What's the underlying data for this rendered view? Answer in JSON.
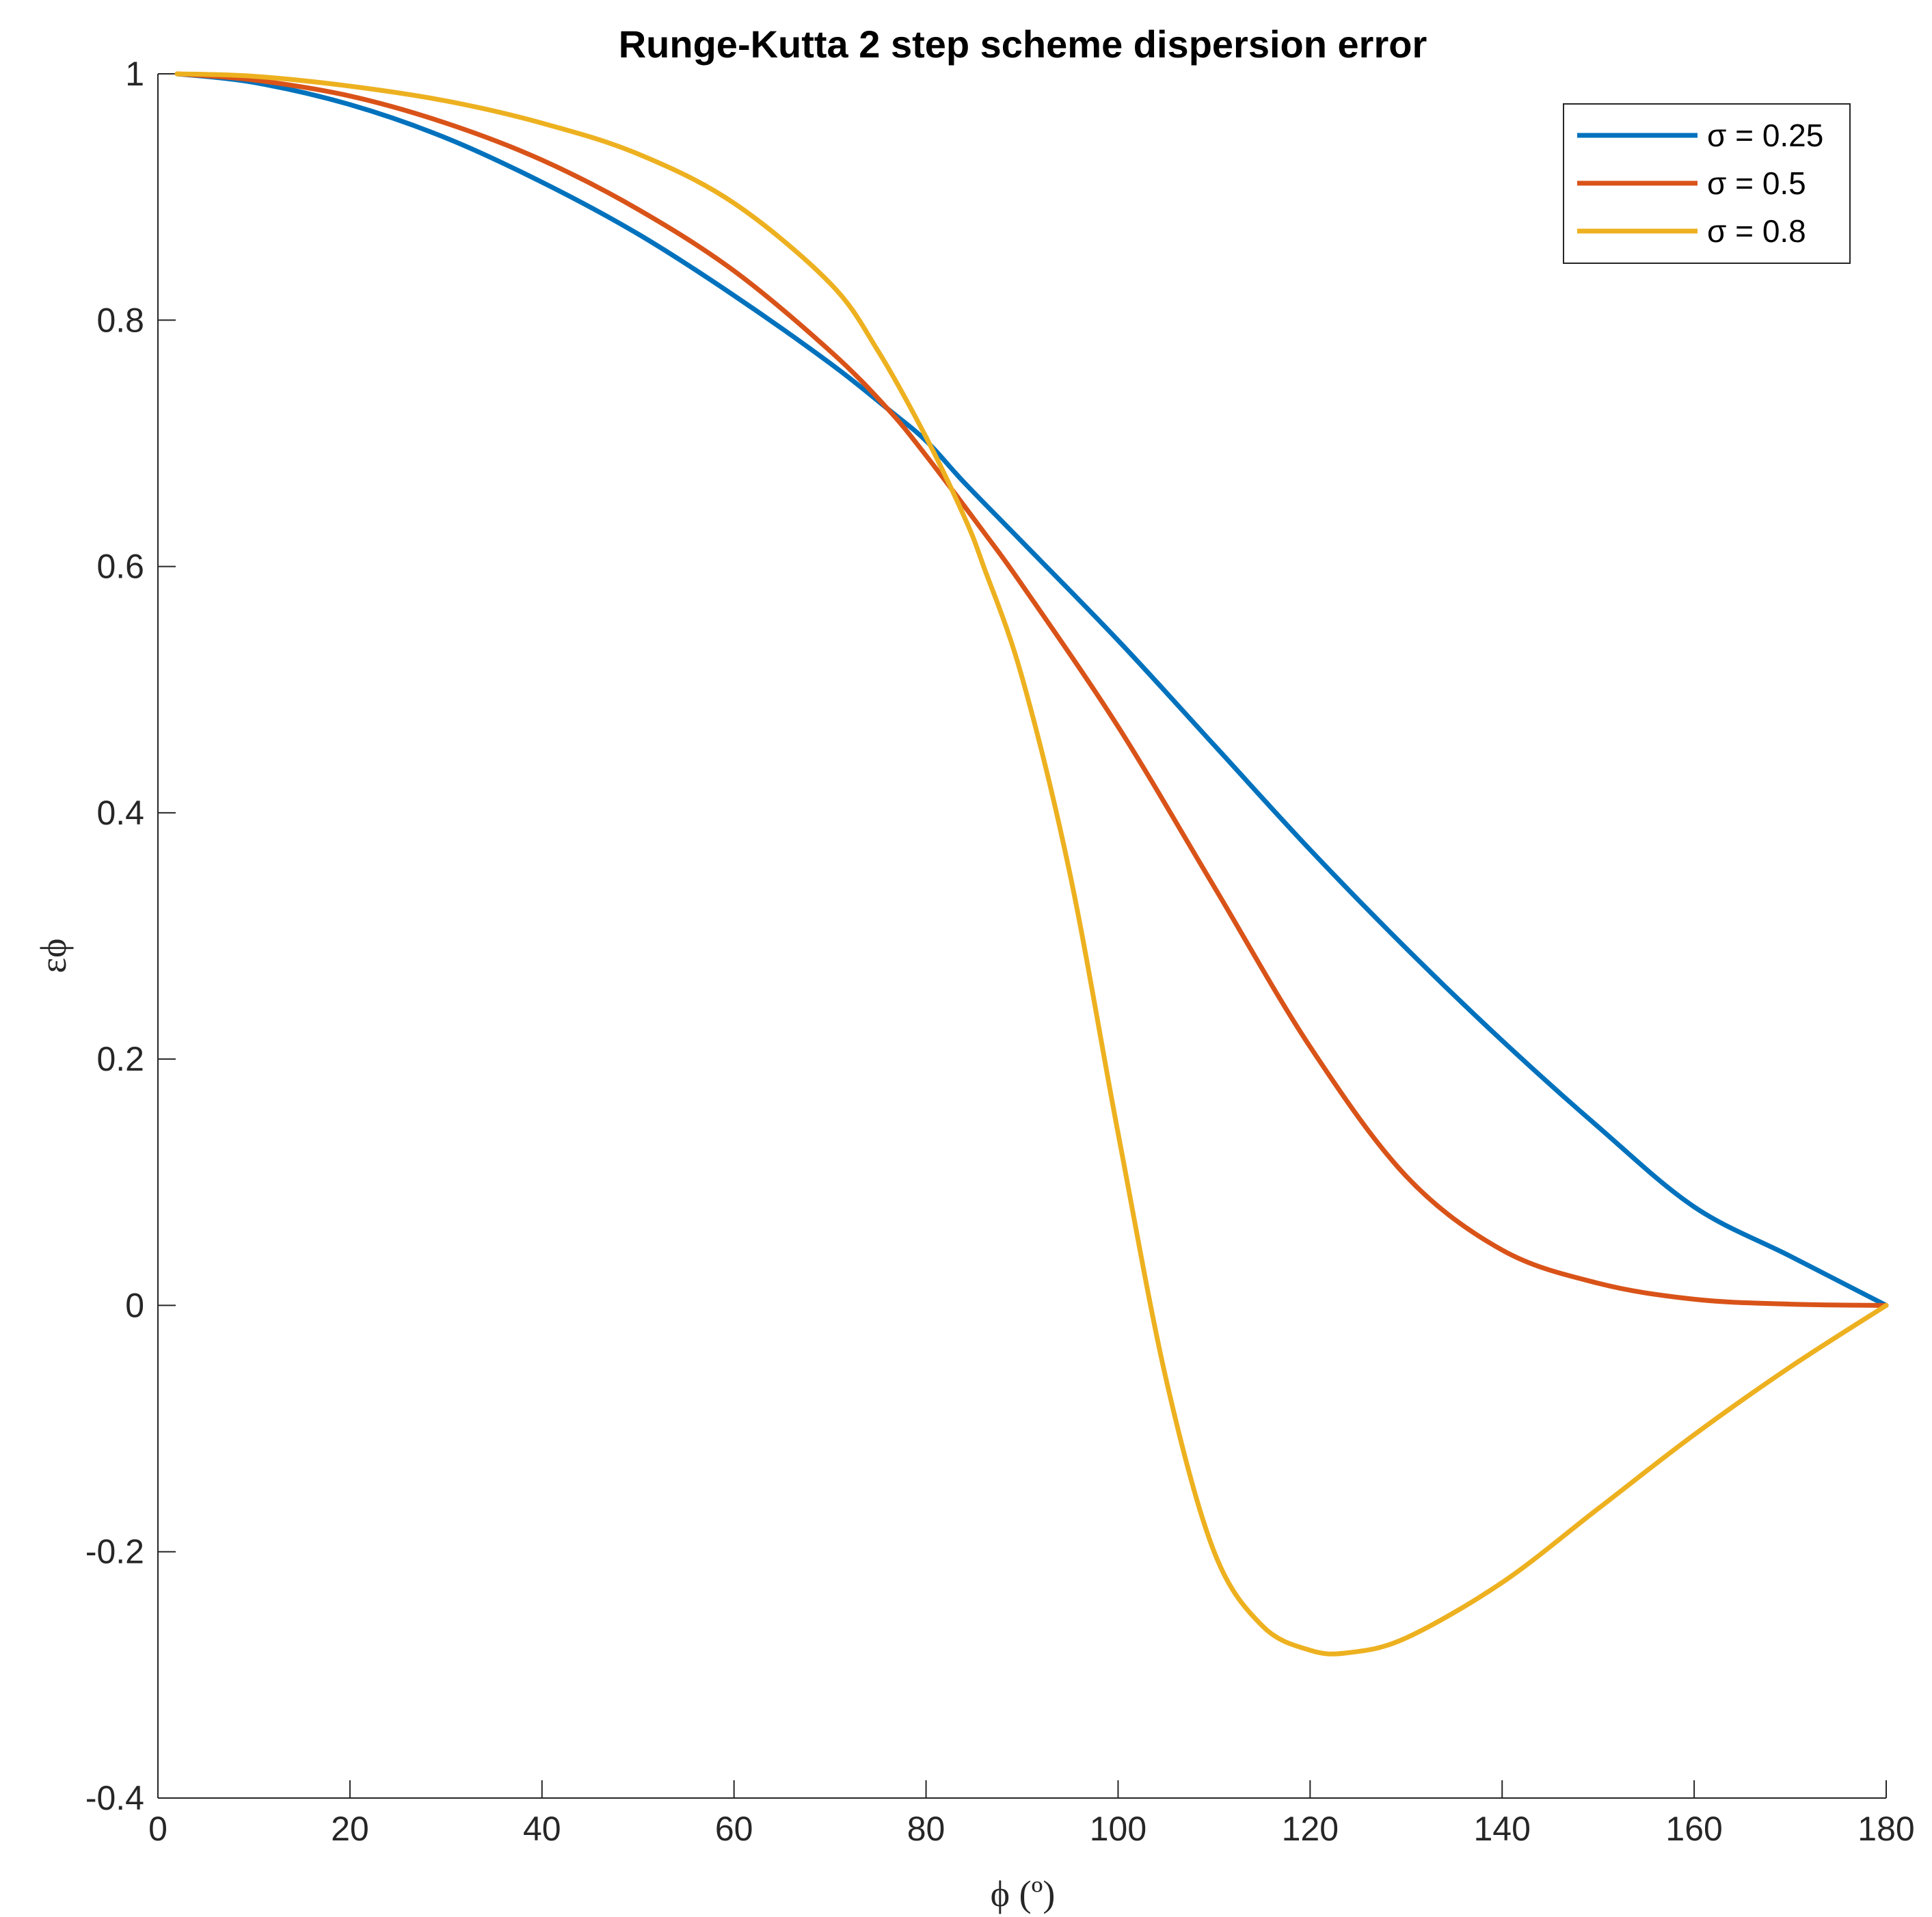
{
  "chart_data": {
    "type": "line",
    "title": "Runge-Kutta 2 step scheme dispersion error",
    "xlabel": "ϕ (º)",
    "ylabel": "εϕ",
    "xlim": [
      0,
      180
    ],
    "ylim": [
      -0.4,
      1
    ],
    "xticks": [
      "0",
      "20",
      "40",
      "60",
      "80",
      "100",
      "120",
      "140",
      "160",
      "180"
    ],
    "yticks": [
      "-0.4",
      "-0.2",
      "0",
      "0.2",
      "0.4",
      "0.6",
      "0.8",
      "1"
    ],
    "grid": false,
    "legend_position": "top-right",
    "series": [
      {
        "name": "σ = 0.25",
        "color": "#0072BD",
        "x": [
          2,
          10,
          20,
          30,
          40,
          50,
          60,
          70,
          76,
          80,
          84,
          90,
          100,
          110,
          120,
          130,
          140,
          150,
          160,
          170,
          180
        ],
        "y": [
          1.0,
          0.993,
          0.975,
          0.948,
          0.912,
          0.87,
          0.82,
          0.765,
          0.728,
          0.702,
          0.668,
          0.62,
          0.54,
          0.455,
          0.37,
          0.29,
          0.215,
          0.145,
          0.08,
          0.04,
          0.0
        ]
      },
      {
        "name": "σ = 0.5",
        "color": "#D95319",
        "x": [
          2,
          10,
          20,
          30,
          40,
          50,
          60,
          70,
          76,
          80,
          86,
          90,
          100,
          110,
          120,
          130,
          140,
          150,
          160,
          170,
          180
        ],
        "y": [
          1.0,
          0.995,
          0.982,
          0.96,
          0.93,
          0.89,
          0.84,
          0.775,
          0.728,
          0.69,
          0.628,
          0.585,
          0.47,
          0.34,
          0.21,
          0.105,
          0.045,
          0.018,
          0.005,
          0.001,
          0.0
        ]
      },
      {
        "name": "σ = 0.8",
        "color": "#EDB120",
        "x": [
          2,
          10,
          20,
          30,
          40,
          50,
          60,
          70,
          75,
          80,
          84,
          86,
          90,
          95,
          100,
          105,
          110,
          115,
          120,
          124,
          130,
          140,
          150,
          160,
          170,
          180
        ],
        "y": [
          1.0,
          0.998,
          0.99,
          0.978,
          0.96,
          0.935,
          0.895,
          0.83,
          0.775,
          0.705,
          0.64,
          0.6,
          0.51,
          0.35,
          0.14,
          -0.06,
          -0.2,
          -0.26,
          -0.28,
          -0.282,
          -0.27,
          -0.225,
          -0.165,
          -0.105,
          -0.05,
          0.0
        ]
      }
    ]
  }
}
